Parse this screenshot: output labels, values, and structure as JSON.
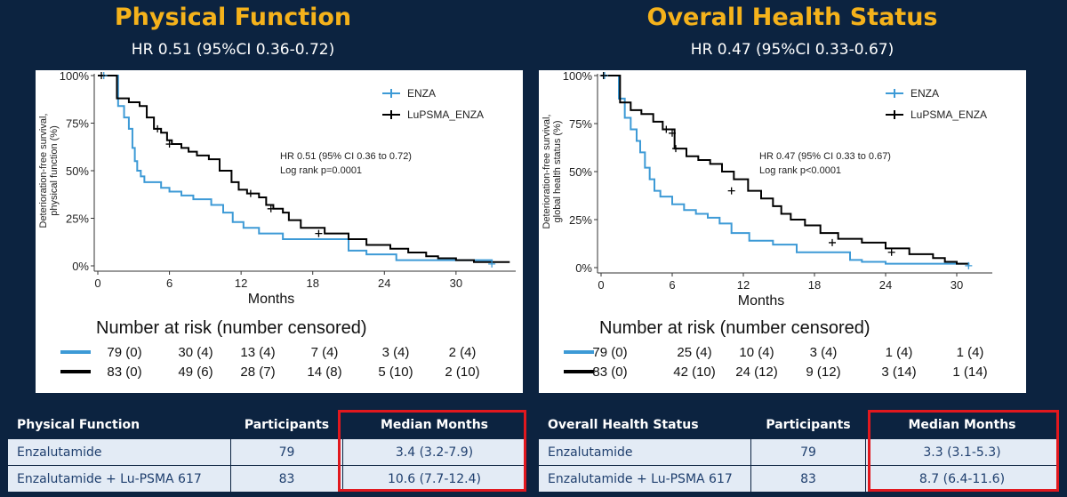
{
  "colors": {
    "enza": "#3d9ad6",
    "lupsma": "#000000",
    "title": "#f5b21b",
    "background": "#0c2340",
    "highlight": "#e1181e"
  },
  "panels": [
    {
      "title": "Physical Function",
      "subtitle": "HR 0.51 (95%CI 0.36-0.72)",
      "risk_title": "Number at risk (number censored)",
      "risk_rows": [
        [
          "79 (0)",
          "30 (4)",
          "13 (4)",
          "7 (4)",
          "3 (4)",
          "2 (4)"
        ],
        [
          "83 (0)",
          "49 (6)",
          "28 (7)",
          "14 (8)",
          "5 (10)",
          "2 (10)"
        ]
      ],
      "table": {
        "headers": [
          "Physical Function",
          "Participants",
          "Median Months"
        ],
        "rows": [
          [
            "Enzalutamide",
            "79",
            "3.4 (3.2-7.9)"
          ],
          [
            "Enzalutamide + Lu-PSMA 617",
            "83",
            "10.6 (7.7-12.4)"
          ]
        ]
      }
    },
    {
      "title": "Overall Health Status",
      "subtitle": "HR 0.47 (95%CI 0.33-0.67)",
      "risk_title": "Number at risk (number censored)",
      "risk_rows": [
        [
          "79 (0)",
          "25 (4)",
          "10 (4)",
          "3 (4)",
          "1 (4)",
          "1 (4)"
        ],
        [
          "83 (0)",
          "42 (10)",
          "24 (12)",
          "9 (12)",
          "3 (14)",
          "1 (14)"
        ]
      ],
      "table": {
        "headers": [
          "Overall Health Status",
          "Participants",
          "Median Months"
        ],
        "rows": [
          [
            "Enzalutamide",
            "79",
            "3.3 (3.1-5.3)"
          ],
          [
            "Enzalutamide + Lu-PSMA 617",
            "83",
            "8.7 (6.4-11.6)"
          ]
        ]
      }
    }
  ],
  "chart_data": [
    {
      "type": "line",
      "xlabel": "Months",
      "ylabel": "Deterioration-free survival, physical function (%)",
      "ylabel_lines": [
        "Deterioration-free survival,",
        "physical function (%)"
      ],
      "xlim": [
        0,
        35
      ],
      "ylim": [
        0,
        100
      ],
      "xticks": [
        0,
        6,
        12,
        18,
        24,
        30
      ],
      "xtick_labels": [
        "0",
        "6",
        "12",
        "18",
        "24",
        "30"
      ],
      "yticks": [
        0,
        25,
        50,
        75,
        100
      ],
      "ytick_labels": [
        "0%",
        "25%",
        "50%",
        "75%",
        "100%"
      ],
      "legend_position": "top-right",
      "annotation": [
        "HR 0.51 (95% CI 0.36 to 0.72)",
        "Log rank p=0.0001"
      ],
      "series": [
        {
          "name": "ENZA",
          "color": "#3d9ad6",
          "x": [
            0,
            1.2,
            1.7,
            2.2,
            2.6,
            2.9,
            3.1,
            3.3,
            3.6,
            3.9,
            4.3,
            5.3,
            6.0,
            7.0,
            8.0,
            9.5,
            10.5,
            11.3,
            12.2,
            13.5,
            14.5,
            15.5,
            21.0,
            22.5,
            25.0,
            33.0
          ],
          "y": [
            100,
            100,
            84,
            78,
            72,
            62,
            55,
            50,
            47,
            44,
            44,
            41,
            39,
            37,
            35,
            32,
            28,
            23,
            20,
            17,
            17,
            14,
            8,
            6,
            3,
            1
          ]
        },
        {
          "name": "LuPSMA_ENZA",
          "color": "#000000",
          "x": [
            0,
            1.3,
            1.6,
            2.6,
            3.5,
            4.1,
            4.7,
            5.3,
            5.8,
            6.2,
            7.0,
            7.6,
            8.3,
            9.3,
            10.2,
            11.2,
            11.8,
            12.5,
            13.5,
            14.1,
            14.7,
            15.5,
            16.0,
            17.0,
            19.0,
            21.0,
            22.5,
            24.5,
            26.0,
            27.5,
            28.5,
            30.0,
            31.5,
            33.0,
            34.5
          ],
          "y": [
            100,
            100,
            88,
            86,
            84,
            78,
            72,
            70,
            66,
            64,
            62,
            60,
            58,
            56,
            50,
            44,
            40,
            38,
            36,
            32,
            30,
            28,
            24,
            20,
            17,
            14,
            11,
            9,
            7,
            5,
            4,
            3,
            2,
            2,
            2
          ]
        }
      ],
      "censor_marks": [
        {
          "series": "ENZA",
          "x": [
            0.5,
            33.0
          ],
          "y": [
            100,
            1
          ]
        },
        {
          "series": "LuPSMA_ENZA",
          "x": [
            0.3,
            5.0,
            6.0,
            12.8,
            14.5,
            18.5
          ],
          "y": [
            100,
            72,
            64,
            38,
            30,
            17
          ]
        }
      ]
    },
    {
      "type": "line",
      "xlabel": "Months",
      "ylabel": "Deterioration-free survival, global health status (%)",
      "ylabel_lines": [
        "Deterioration-free survival,",
        "global health status (%)"
      ],
      "xlim": [
        0,
        33
      ],
      "ylim": [
        0,
        100
      ],
      "xticks": [
        0,
        6,
        12,
        18,
        24,
        30
      ],
      "xtick_labels": [
        "0",
        "6",
        "12",
        "18",
        "24",
        "30"
      ],
      "yticks": [
        0,
        25,
        50,
        75,
        100
      ],
      "ytick_labels": [
        "0%",
        "25%",
        "50%",
        "75%",
        "100%"
      ],
      "legend_position": "top-right",
      "annotation": [
        "HR 0.47 (95% CI 0.33 to 0.67)",
        "Log rank p<0.0001"
      ],
      "series": [
        {
          "name": "ENZA",
          "color": "#3d9ad6",
          "x": [
            0,
            1.2,
            1.5,
            2.0,
            2.5,
            3.0,
            3.3,
            3.7,
            4.1,
            4.5,
            5.0,
            6.0,
            7.0,
            8.0,
            9.0,
            10.0,
            11.0,
            12.5,
            14.5,
            16.5,
            21.0,
            22.0,
            24.0,
            31.0
          ],
          "y": [
            100,
            100,
            88,
            78,
            72,
            66,
            60,
            52,
            46,
            40,
            37,
            33,
            30,
            28,
            26,
            23,
            18,
            14,
            12,
            8,
            4,
            3,
            2,
            1
          ]
        },
        {
          "name": "LuPSMA_ENZA",
          "color": "#000000",
          "x": [
            0,
            1.2,
            1.6,
            2.5,
            3.4,
            4.4,
            5.2,
            6.2,
            7.2,
            8.2,
            9.2,
            10.2,
            11.2,
            12.4,
            13.5,
            14.5,
            15.2,
            16.0,
            17.2,
            18.5,
            20.0,
            22.0,
            24.0,
            26.0,
            28.0,
            29.0,
            30.0,
            31.0
          ],
          "y": [
            100,
            100,
            86,
            82,
            80,
            76,
            72,
            62,
            58,
            56,
            54,
            50,
            46,
            40,
            36,
            32,
            28,
            25,
            22,
            18,
            15,
            13,
            10,
            7,
            5,
            3,
            2,
            2
          ]
        }
      ],
      "censor_marks": [
        {
          "series": "ENZA",
          "x": [
            0.3,
            31.0
          ],
          "y": [
            100,
            1
          ]
        },
        {
          "series": "LuPSMA_ENZA",
          "x": [
            0.2,
            5.5,
            6.0,
            6.3,
            11.0,
            19.5,
            24.5
          ],
          "y": [
            100,
            72,
            70,
            62,
            40,
            13,
            8
          ]
        }
      ]
    }
  ]
}
